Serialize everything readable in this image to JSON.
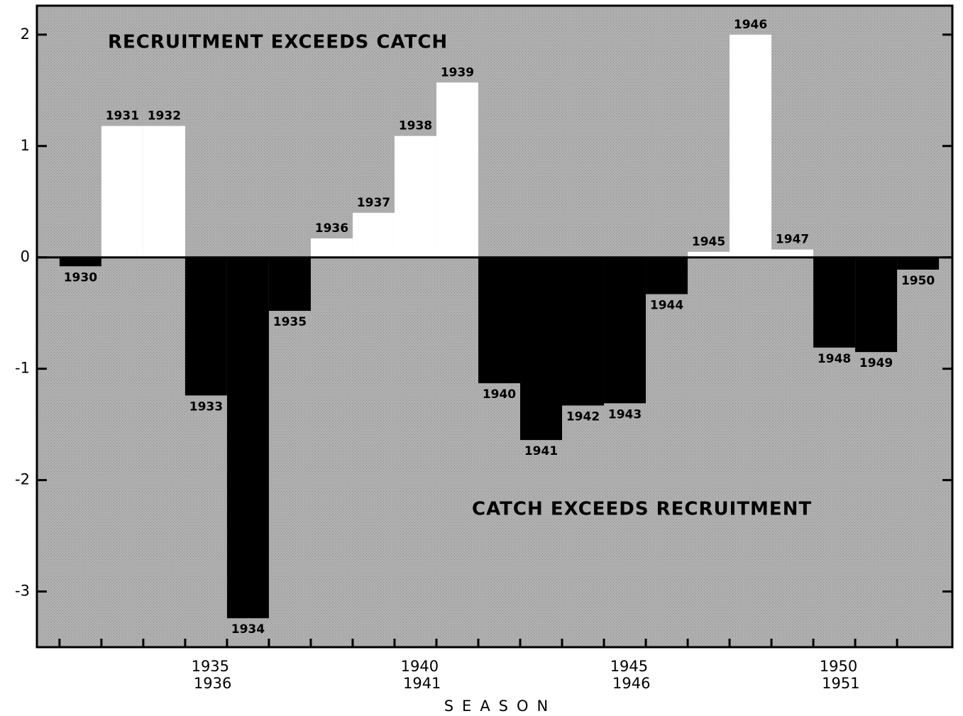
{
  "chart_data": {
    "type": "bar",
    "annotations": [
      "RECRUITMENT EXCEEDS CATCH",
      "CATCH EXCEEDS RECRUITMENT"
    ],
    "xlabel": "SEASON",
    "categories": [
      "1930",
      "1931",
      "1932",
      "1933",
      "1934",
      "1935",
      "1936",
      "1937",
      "1938",
      "1939",
      "1940",
      "1941",
      "1942",
      "1943",
      "1944",
      "1945",
      "1946",
      "1947",
      "1948",
      "1949",
      "1950"
    ],
    "values": [
      -0.08,
      1.18,
      1.18,
      -1.24,
      -3.24,
      -0.48,
      0.17,
      0.4,
      1.09,
      1.57,
      -1.13,
      -1.64,
      -1.33,
      -1.31,
      -0.33,
      0.05,
      2.0,
      0.07,
      -0.81,
      -0.85,
      -0.11
    ],
    "positive_color": "#ffffff",
    "negative_color": "#000000",
    "ylim": [
      -3.5,
      2.26
    ],
    "yticks": [
      -3,
      -2,
      -1,
      0,
      1,
      2
    ],
    "xlim": [
      -0.54,
      21.32
    ],
    "xticks": [
      {
        "value": 3.6,
        "label": "1935 1936"
      },
      {
        "value": 8.6,
        "label": "1940 1941"
      },
      {
        "value": 13.6,
        "label": "1945 1946"
      },
      {
        "value": 18.6,
        "label": "1950 1951"
      }
    ]
  }
}
